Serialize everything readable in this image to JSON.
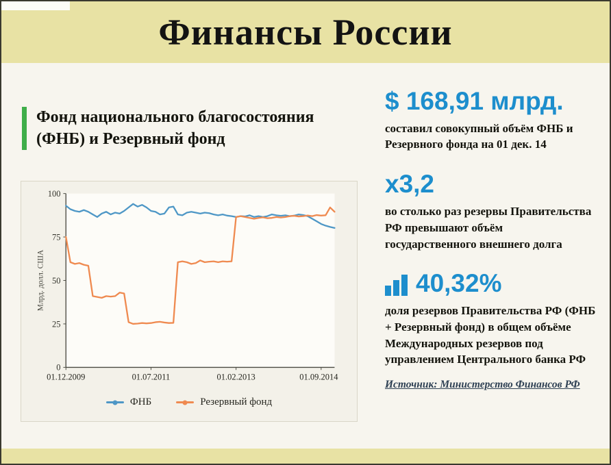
{
  "header": {
    "title": "Финансы России"
  },
  "left": {
    "heading": "Фонд национального благосостояния (ФНБ) и Резервный фонд"
  },
  "stats": [
    {
      "value": "$ 168,91 млрд.",
      "caption": "составил совокупный объём ФНБ и Резервного фонда на 01 дек. 14"
    },
    {
      "value": "х3,2",
      "caption": "во столько раз резервы Правительства РФ превышают объём государственного внешнего долга"
    },
    {
      "value": "40,32%",
      "icon": "bar-chart-icon",
      "caption": "доля резервов Правительства РФ (ФНБ + Резервный фонд) в общем объёме Международных резервов под управлением Центрального банка РФ"
    }
  ],
  "source": "Источник: Министерство Финансов РФ",
  "colors": {
    "accent_blue": "#1d8ecd",
    "band_khaki": "#e8e2a4",
    "green_bar": "#3fae49",
    "line_blue": "#4e97c6",
    "line_orange": "#ef8a50"
  },
  "chart_data": {
    "type": "line",
    "title": "Фонд национального благосостояния (ФНБ) и Резервный фонд",
    "ylabel": "Млрд. долл. США",
    "ylim": [
      0,
      100
    ],
    "yticks": [
      0,
      25,
      50,
      75,
      100
    ],
    "x_monthly_from": "2009-12",
    "xticks": [
      {
        "label": "01.12.2009",
        "index": 0
      },
      {
        "label": "01.07.2011",
        "index": 19
      },
      {
        "label": "01.02.2013",
        "index": 38
      },
      {
        "label": "01.09.2014",
        "index": 57
      }
    ],
    "grid": false,
    "legend_position": "bottom",
    "series": [
      {
        "name": "ФНБ",
        "color": "#4e97c6",
        "values": [
          93,
          91,
          90,
          89.5,
          90.5,
          89.5,
          88,
          86.5,
          88.5,
          89.5,
          88,
          89,
          88.5,
          90,
          92,
          94,
          92.5,
          93.5,
          92,
          90,
          89.5,
          88,
          88.5,
          92,
          92.5,
          88,
          87.5,
          89,
          89.5,
          89,
          88.5,
          89,
          88.7,
          88,
          87.5,
          88,
          87.3,
          87,
          86.5,
          87,
          86.8,
          87.5,
          86.5,
          87,
          86.5,
          87,
          88,
          87.5,
          87.2,
          87.5,
          87,
          87.3,
          88,
          87.6,
          87,
          85.5,
          84,
          82.5,
          81.5,
          80.8,
          80.2
        ]
      },
      {
        "name": "Резервный фонд",
        "color": "#ef8a50",
        "values": [
          75,
          60.5,
          59.5,
          60,
          59,
          58.5,
          41,
          40.5,
          40,
          41,
          40.7,
          41,
          43,
          42.5,
          26,
          25,
          25.2,
          25.5,
          25.3,
          25.5,
          26,
          26.2,
          25.8,
          25.5,
          25.6,
          60.5,
          61,
          60.5,
          59.5,
          60,
          61.5,
          60.5,
          60.8,
          61,
          60.5,
          61,
          60.8,
          61,
          86.5,
          87,
          86.5,
          86,
          85.5,
          86,
          86.3,
          85.8,
          86,
          86.5,
          86.2,
          86.5,
          87,
          87.2,
          86.8,
          87,
          87.4,
          87,
          87.6,
          87.3,
          87.5,
          92,
          89.5
        ]
      }
    ]
  }
}
